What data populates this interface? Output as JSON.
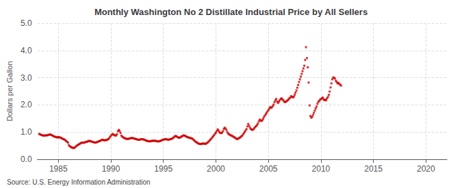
{
  "chart_data": {
    "type": "scatter",
    "title": "Monthly Washington No 2 Distillate Industrial Price by All Sellers",
    "ylabel": "Dollars per Gallon",
    "annotations": [
      "Source: U.S. Energy Information Administration"
    ],
    "color": "#cc0000",
    "marker": "square",
    "grid": true,
    "xlim": [
      1983,
      2022
    ],
    "xticks": [
      1985,
      1990,
      1995,
      2000,
      2005,
      2010,
      2015,
      2020
    ],
    "ylim": [
      0.0,
      5.0
    ],
    "yticks": [
      {
        "value": 0.0,
        "label": "0.0"
      },
      {
        "value": 1.0,
        "label": "1.0"
      },
      {
        "value": 2.0,
        "label": "2.0"
      },
      {
        "value": 3.0,
        "label": "3.0"
      },
      {
        "value": 4.0,
        "label": "4.0"
      },
      {
        "value": 5.0,
        "label": "5.0"
      }
    ],
    "x": [
      1983.17,
      1983.25,
      1983.33,
      1983.42,
      1983.5,
      1983.58,
      1983.67,
      1983.75,
      1983.83,
      1983.92,
      1984.0,
      1984.08,
      1984.17,
      1984.25,
      1984.33,
      1984.42,
      1984.5,
      1984.58,
      1984.67,
      1984.75,
      1984.83,
      1984.92,
      1985.0,
      1985.08,
      1985.17,
      1985.25,
      1985.33,
      1985.42,
      1985.5,
      1985.58,
      1985.67,
      1985.75,
      1985.83,
      1985.92,
      1986.0,
      1986.08,
      1986.17,
      1986.25,
      1986.33,
      1986.42,
      1986.5,
      1986.58,
      1986.67,
      1986.75,
      1986.83,
      1986.92,
      1987.0,
      1987.08,
      1987.17,
      1987.25,
      1987.33,
      1987.42,
      1987.5,
      1987.58,
      1987.67,
      1987.75,
      1987.83,
      1987.92,
      1988.0,
      1988.08,
      1988.17,
      1988.25,
      1988.33,
      1988.42,
      1988.5,
      1988.58,
      1988.67,
      1988.75,
      1988.83,
      1988.92,
      1989.0,
      1989.08,
      1989.17,
      1989.25,
      1989.33,
      1989.42,
      1989.5,
      1989.58,
      1989.67,
      1989.75,
      1989.83,
      1989.92,
      1990.0,
      1990.08,
      1990.17,
      1990.25,
      1990.33,
      1990.42,
      1990.5,
      1990.58,
      1990.67,
      1990.75,
      1990.83,
      1990.92,
      1991.0,
      1991.08,
      1991.17,
      1991.25,
      1991.33,
      1991.42,
      1991.5,
      1991.58,
      1991.67,
      1991.75,
      1991.83,
      1991.92,
      1992.0,
      1992.08,
      1992.17,
      1992.25,
      1992.33,
      1992.42,
      1992.5,
      1992.58,
      1992.67,
      1992.75,
      1992.83,
      1992.92,
      1993.0,
      1993.08,
      1993.17,
      1993.25,
      1993.33,
      1993.42,
      1993.5,
      1993.58,
      1993.67,
      1993.75,
      1993.83,
      1993.92,
      1994.0,
      1994.08,
      1994.17,
      1994.25,
      1994.33,
      1994.42,
      1994.5,
      1994.58,
      1994.67,
      1994.75,
      1994.83,
      1994.92,
      1995.0,
      1995.08,
      1995.17,
      1995.25,
      1995.33,
      1995.42,
      1995.5,
      1995.58,
      1995.67,
      1995.75,
      1995.83,
      1995.92,
      1996.0,
      1996.08,
      1996.17,
      1996.25,
      1996.33,
      1996.42,
      1996.5,
      1996.58,
      1996.67,
      1996.75,
      1996.83,
      1996.92,
      1997.0,
      1997.08,
      1997.17,
      1997.25,
      1997.33,
      1997.42,
      1997.5,
      1997.58,
      1997.67,
      1997.75,
      1997.83,
      1997.92,
      1998.0,
      1998.08,
      1998.17,
      1998.25,
      1998.33,
      1998.42,
      1998.5,
      1998.58,
      1998.67,
      1998.75,
      1998.83,
      1998.92,
      1999.0,
      1999.08,
      1999.17,
      1999.25,
      1999.33,
      1999.42,
      1999.5,
      1999.58,
      1999.67,
      1999.75,
      1999.83,
      1999.92,
      2000.0,
      2000.08,
      2000.17,
      2000.25,
      2000.33,
      2000.42,
      2000.5,
      2000.58,
      2000.67,
      2000.75,
      2000.83,
      2000.92,
      2001.0,
      2001.08,
      2001.17,
      2001.25,
      2001.33,
      2001.42,
      2001.5,
      2001.58,
      2001.67,
      2001.75,
      2001.83,
      2001.92,
      2002.0,
      2002.08,
      2002.17,
      2002.25,
      2002.33,
      2002.42,
      2002.5,
      2002.58,
      2002.67,
      2002.75,
      2002.83,
      2002.92,
      2003.0,
      2003.08,
      2003.17,
      2003.25,
      2003.33,
      2003.42,
      2003.5,
      2003.58,
      2003.67,
      2003.75,
      2003.83,
      2003.92,
      2004.0,
      2004.08,
      2004.17,
      2004.25,
      2004.33,
      2004.42,
      2004.5,
      2004.58,
      2004.67,
      2004.75,
      2004.83,
      2004.92,
      2005.0,
      2005.08,
      2005.17,
      2005.25,
      2005.33,
      2005.42,
      2005.5,
      2005.58,
      2005.67,
      2005.75,
      2005.83,
      2005.92,
      2006.0,
      2006.08,
      2006.17,
      2006.25,
      2006.33,
      2006.42,
      2006.5,
      2006.58,
      2006.67,
      2006.75,
      2006.83,
      2006.92,
      2007.0,
      2007.08,
      2007.17,
      2007.25,
      2007.33,
      2007.42,
      2007.5,
      2007.58,
      2007.67,
      2007.75,
      2007.83,
      2007.92,
      2008.0,
      2008.08,
      2008.17,
      2008.25,
      2008.33,
      2008.42,
      2008.5,
      2008.58,
      2008.67,
      2008.75,
      2008.83,
      2008.92,
      2009.0,
      2009.08,
      2009.17,
      2009.25,
      2009.33,
      2009.42,
      2009.5,
      2009.58,
      2009.67,
      2009.75,
      2009.83,
      2009.92,
      2010.0,
      2010.08,
      2010.17,
      2010.25,
      2010.33,
      2010.42,
      2010.5,
      2010.58,
      2010.67,
      2010.75,
      2010.83,
      2010.92,
      2011.0,
      2011.08,
      2011.17,
      2011.25,
      2011.33,
      2011.42,
      2011.5,
      2011.58,
      2011.67,
      2011.75,
      2011.83,
      2011.92
    ],
    "values": [
      0.93,
      0.92,
      0.9,
      0.89,
      0.88,
      0.87,
      0.87,
      0.88,
      0.88,
      0.88,
      0.89,
      0.9,
      0.91,
      0.91,
      0.89,
      0.88,
      0.86,
      0.84,
      0.83,
      0.82,
      0.81,
      0.8,
      0.82,
      0.81,
      0.8,
      0.79,
      0.77,
      0.75,
      0.74,
      0.72,
      0.7,
      0.67,
      0.64,
      0.61,
      0.52,
      0.48,
      0.46,
      0.44,
      0.43,
      0.41,
      0.42,
      0.44,
      0.47,
      0.5,
      0.52,
      0.54,
      0.56,
      0.58,
      0.6,
      0.61,
      0.61,
      0.61,
      0.62,
      0.63,
      0.64,
      0.65,
      0.66,
      0.68,
      0.67,
      0.66,
      0.65,
      0.64,
      0.63,
      0.62,
      0.61,
      0.62,
      0.63,
      0.64,
      0.66,
      0.67,
      0.68,
      0.7,
      0.72,
      0.71,
      0.7,
      0.7,
      0.7,
      0.71,
      0.72,
      0.74,
      0.77,
      0.82,
      0.86,
      0.9,
      0.93,
      0.91,
      0.89,
      0.87,
      0.88,
      0.92,
      1.03,
      1.08,
      1.04,
      0.97,
      0.87,
      0.83,
      0.81,
      0.79,
      0.77,
      0.76,
      0.75,
      0.75,
      0.75,
      0.76,
      0.77,
      0.78,
      0.78,
      0.78,
      0.77,
      0.76,
      0.75,
      0.74,
      0.73,
      0.72,
      0.72,
      0.72,
      0.73,
      0.74,
      0.74,
      0.73,
      0.72,
      0.71,
      0.69,
      0.68,
      0.67,
      0.67,
      0.66,
      0.66,
      0.67,
      0.68,
      0.68,
      0.68,
      0.68,
      0.68,
      0.67,
      0.66,
      0.66,
      0.66,
      0.67,
      0.68,
      0.7,
      0.71,
      0.72,
      0.73,
      0.74,
      0.74,
      0.73,
      0.72,
      0.72,
      0.73,
      0.74,
      0.75,
      0.76,
      0.78,
      0.81,
      0.84,
      0.86,
      0.84,
      0.82,
      0.8,
      0.79,
      0.8,
      0.82,
      0.84,
      0.86,
      0.88,
      0.87,
      0.86,
      0.84,
      0.82,
      0.81,
      0.8,
      0.79,
      0.78,
      0.77,
      0.76,
      0.73,
      0.7,
      0.67,
      0.64,
      0.62,
      0.6,
      0.58,
      0.57,
      0.56,
      0.56,
      0.57,
      0.58,
      0.58,
      0.57,
      0.57,
      0.58,
      0.6,
      0.63,
      0.66,
      0.7,
      0.73,
      0.77,
      0.81,
      0.85,
      0.89,
      0.94,
      0.98,
      1.04,
      1.1,
      1.06,
      1.0,
      0.97,
      0.96,
      0.98,
      1.03,
      1.11,
      1.16,
      1.13,
      1.08,
      1.0,
      0.95,
      0.92,
      0.9,
      0.88,
      0.87,
      0.85,
      0.83,
      0.81,
      0.79,
      0.77,
      0.74,
      0.75,
      0.77,
      0.79,
      0.81,
      0.84,
      0.87,
      0.91,
      0.96,
      1.01,
      1.06,
      1.11,
      1.21,
      1.3,
      1.23,
      1.16,
      1.11,
      1.09,
      1.08,
      1.11,
      1.15,
      1.19,
      1.22,
      1.26,
      1.31,
      1.39,
      1.46,
      1.43,
      1.41,
      1.43,
      1.49,
      1.56,
      1.61,
      1.66,
      1.71,
      1.76,
      1.81,
      1.86,
      1.92,
      1.89,
      1.91,
      1.96,
      2.01,
      2.1,
      2.17,
      2.22,
      2.12,
      2.07,
      2.12,
      2.17,
      2.22,
      2.24,
      2.2,
      2.17,
      2.12,
      2.1,
      2.12,
      2.14,
      2.17,
      2.2,
      2.24,
      2.27,
      2.32,
      2.3,
      2.27,
      2.3,
      2.37,
      2.45,
      2.53,
      2.63,
      2.73,
      2.84,
      2.94,
      3.04,
      3.14,
      3.24,
      3.34,
      3.44,
      3.65,
      4.12,
      3.72,
      3.38,
      2.82,
      1.98,
      1.59,
      1.53,
      1.56,
      1.63,
      1.71,
      1.79,
      1.87,
      1.94,
      2.04,
      2.11,
      2.14,
      2.19,
      2.21,
      2.24,
      2.27,
      2.21,
      2.17,
      2.19,
      2.17,
      2.24,
      2.29,
      2.37,
      2.49,
      2.64,
      2.79,
      2.94,
      3.01,
      2.99,
      2.97,
      2.89,
      2.84,
      2.79,
      2.81,
      2.77,
      2.74,
      2.71
    ]
  }
}
